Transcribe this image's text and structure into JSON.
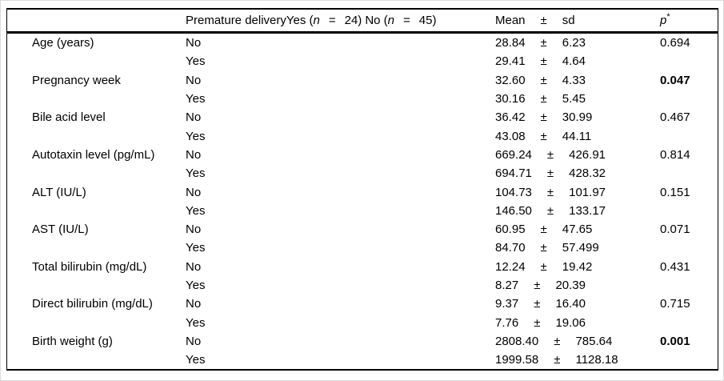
{
  "table": {
    "symbols": {
      "pm": "±"
    },
    "header": {
      "group_col": {
        "prefix": "Premature deliveryYes (",
        "n_italic_1": "n",
        "equals_1": "=",
        "count_1": "24)",
        "no_open": "No (",
        "n_italic_2": "n",
        "equals_2": "=",
        "count_2": "45)"
      },
      "mean_label": "Mean",
      "pm_label": "±",
      "sd_label": "sd",
      "p_label": "p",
      "p_asterisk": "*"
    },
    "rows": [
      {
        "label": "Age (years)",
        "group": "No",
        "mean": "28.84",
        "sd": "6.23",
        "p": "0.694"
      },
      {
        "label": "",
        "group": "Yes",
        "mean": "29.41",
        "sd": "4.64"
      },
      {
        "label": "Pregnancy week",
        "group": "No",
        "mean": "32.60",
        "sd": "4.33",
        "p": "0.047"
      },
      {
        "label": "",
        "group": "Yes",
        "mean": "30.16",
        "sd": "5.45"
      },
      {
        "label": "Bile acid level",
        "group": "No",
        "mean": "36.42",
        "sd": "30.99",
        "p": "0.467"
      },
      {
        "label": "",
        "group": "Yes",
        "mean": "43.08",
        "sd": "44.11"
      },
      {
        "label": "Autotaxin level (pg/mL)",
        "group": "No",
        "mean": "669.24",
        "sd": "426.91",
        "p": "0.814"
      },
      {
        "label": "",
        "group": "Yes",
        "mean": "694.71",
        "sd": "428.32"
      },
      {
        "label": "ALT (IU/L)",
        "group": "No",
        "mean": "104.73",
        "sd": "101.97",
        "p": "0.151"
      },
      {
        "label": "",
        "group": "Yes",
        "mean": "146.50",
        "sd": "133.17"
      },
      {
        "label": "AST (IU/L)",
        "group": "No",
        "mean": "60.95",
        "sd": "47.65",
        "p": "0.071"
      },
      {
        "label": "",
        "group": "Yes",
        "mean": "84.70",
        "sd": "57.499"
      },
      {
        "label": "Total bilirubin (mg/dL)",
        "group": "No",
        "mean": "12.24",
        "sd": "19.42",
        "p": "0.431"
      },
      {
        "label": "",
        "group": "Yes",
        "mean": "8.27",
        "sd": "20.39"
      },
      {
        "label": "Direct bilirubin (mg/dL)",
        "group": "No",
        "mean": "9.37",
        "sd": "16.40",
        "p": "0.715"
      },
      {
        "label": "",
        "group": "Yes",
        "mean": "7.76",
        "sd": "19.06"
      },
      {
        "label": "Birth weight (g)",
        "group": "No",
        "mean": "2808.40",
        "sd": "785.64",
        "p": "0.001"
      },
      {
        "label": "",
        "group": "Yes",
        "mean": "1999.58",
        "sd": "1128.18"
      }
    ]
  }
}
